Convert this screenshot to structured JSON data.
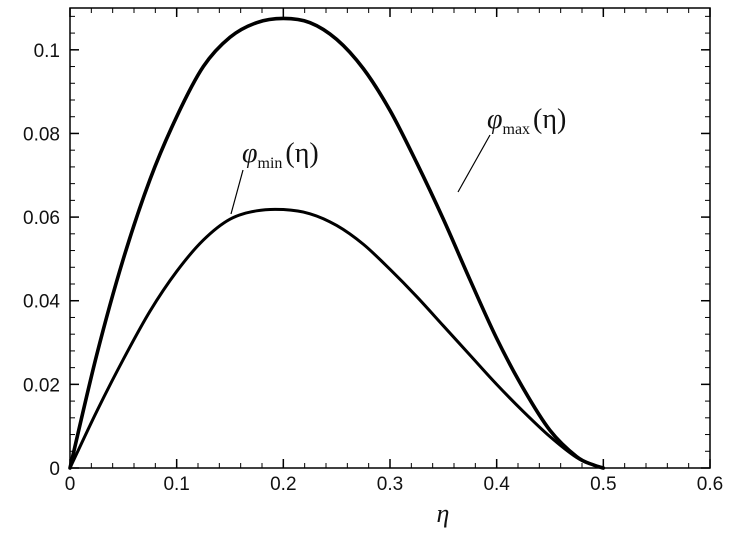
{
  "chart_data": {
    "type": "line",
    "title": "",
    "xlabel": "η",
    "ylabel": "",
    "xlim": [
      0,
      0.6
    ],
    "ylim": [
      0,
      0.11
    ],
    "xticks": [
      0,
      0.1,
      0.2,
      0.3,
      0.4,
      0.5,
      0.6
    ],
    "yticks": [
      0,
      0.02,
      0.04,
      0.06,
      0.08,
      0.1
    ],
    "x_tick_labels": [
      "0",
      "0.1",
      "0.2",
      "0.3",
      "0.4",
      "0.5",
      "0.6"
    ],
    "y_tick_labels": [
      "0",
      "0.02",
      "0.04",
      "0.06",
      "0.08",
      "0.1"
    ],
    "grid": false,
    "series": [
      {
        "label": {
          "symbol": "φ",
          "sub": "max",
          "arg": "(η)"
        },
        "color": "#000000",
        "x": [
          0,
          0.025,
          0.05,
          0.075,
          0.1,
          0.125,
          0.15,
          0.175,
          0.2,
          0.225,
          0.25,
          0.275,
          0.3,
          0.325,
          0.35,
          0.375,
          0.4,
          0.425,
          0.45,
          0.475,
          0.49,
          0.5
        ],
        "y": [
          0,
          0.027,
          0.05,
          0.069,
          0.084,
          0.096,
          0.103,
          0.1065,
          0.1075,
          0.1065,
          0.1025,
          0.0955,
          0.0855,
          0.073,
          0.0595,
          0.045,
          0.031,
          0.019,
          0.009,
          0.0027,
          0.0008,
          0
        ]
      },
      {
        "label": {
          "symbol": "φ",
          "sub": "min",
          "arg": "(η)"
        },
        "color": "#000000",
        "x": [
          0,
          0.025,
          0.05,
          0.075,
          0.1,
          0.125,
          0.15,
          0.175,
          0.2,
          0.225,
          0.25,
          0.275,
          0.3,
          0.325,
          0.35,
          0.375,
          0.4,
          0.425,
          0.45,
          0.475,
          0.49,
          0.5
        ],
        "y": [
          0,
          0.0135,
          0.026,
          0.0375,
          0.047,
          0.0545,
          0.0595,
          0.0615,
          0.0618,
          0.0608,
          0.058,
          0.0535,
          0.0475,
          0.041,
          0.034,
          0.027,
          0.02,
          0.0135,
          0.0075,
          0.0025,
          0.0008,
          0
        ]
      }
    ]
  }
}
